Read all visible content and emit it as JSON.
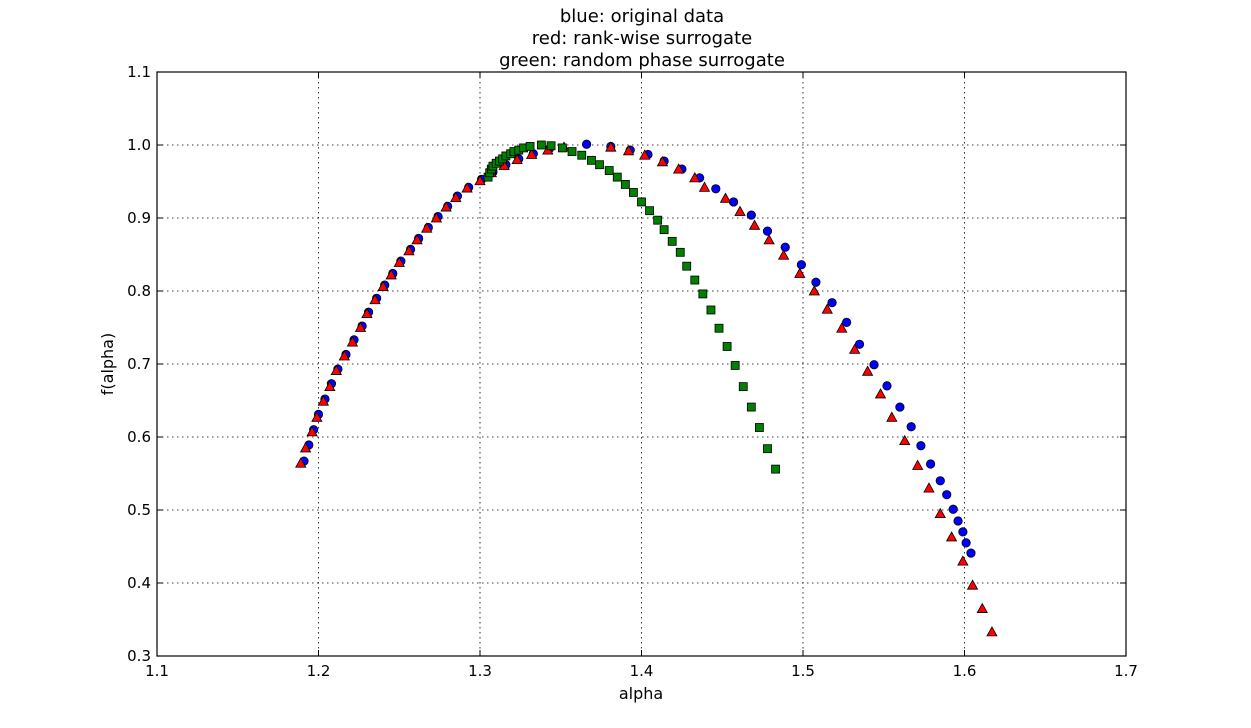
{
  "chart_data": {
    "type": "scatter",
    "title_lines": [
      "blue: original data",
      "red: rank-wise surrogate",
      "green: random phase surrogate"
    ],
    "xlabel": "alpha",
    "ylabel": "f(alpha)",
    "xlim": [
      1.1,
      1.7
    ],
    "ylim": [
      0.3,
      1.1
    ],
    "xticks": [
      "1.1",
      "1.2",
      "1.3",
      "1.4",
      "1.5",
      "1.6",
      "1.7"
    ],
    "yticks": [
      "0.3",
      "0.4",
      "0.5",
      "0.6",
      "0.7",
      "0.8",
      "0.9",
      "1.0",
      "1.1"
    ],
    "grid": true,
    "series": [
      {
        "color": "#0000ff",
        "marker": "circle",
        "points": [
          [
            1.191,
            0.567
          ],
          [
            1.194,
            0.589
          ],
          [
            1.197,
            0.61
          ],
          [
            1.2,
            0.631
          ],
          [
            1.204,
            0.652
          ],
          [
            1.208,
            0.673
          ],
          [
            1.212,
            0.693
          ],
          [
            1.217,
            0.713
          ],
          [
            1.222,
            0.733
          ],
          [
            1.227,
            0.752
          ],
          [
            1.231,
            0.771
          ],
          [
            1.236,
            0.79
          ],
          [
            1.241,
            0.808
          ],
          [
            1.246,
            0.824
          ],
          [
            1.251,
            0.841
          ],
          [
            1.257,
            0.857
          ],
          [
            1.262,
            0.872
          ],
          [
            1.268,
            0.887
          ],
          [
            1.274,
            0.902
          ],
          [
            1.28,
            0.916
          ],
          [
            1.286,
            0.93
          ],
          [
            1.293,
            0.942
          ],
          [
            1.301,
            0.953
          ],
          [
            1.308,
            0.963
          ],
          [
            1.316,
            0.973
          ],
          [
            1.324,
            0.981
          ],
          [
            1.333,
            0.988
          ],
          [
            1.343,
            0.995
          ],
          [
            1.366,
            1.001
          ],
          [
            1.381,
            0.998
          ],
          [
            1.393,
            0.993
          ],
          [
            1.404,
            0.987
          ],
          [
            1.414,
            0.978
          ],
          [
            1.425,
            0.967
          ],
          [
            1.436,
            0.955
          ],
          [
            1.446,
            0.94
          ],
          [
            1.457,
            0.922
          ],
          [
            1.468,
            0.904
          ],
          [
            1.478,
            0.882
          ],
          [
            1.489,
            0.86
          ],
          [
            1.499,
            0.836
          ],
          [
            1.508,
            0.812
          ],
          [
            1.518,
            0.784
          ],
          [
            1.527,
            0.757
          ],
          [
            1.535,
            0.727
          ],
          [
            1.544,
            0.699
          ],
          [
            1.552,
            0.67
          ],
          [
            1.56,
            0.641
          ],
          [
            1.567,
            0.614
          ],
          [
            1.573,
            0.588
          ],
          [
            1.579,
            0.563
          ],
          [
            1.585,
            0.54
          ],
          [
            1.589,
            0.521
          ],
          [
            1.593,
            0.501
          ],
          [
            1.596,
            0.485
          ],
          [
            1.599,
            0.47
          ],
          [
            1.601,
            0.455
          ],
          [
            1.604,
            0.441
          ]
        ]
      },
      {
        "color": "#ff0000",
        "marker": "triangle",
        "points": [
          [
            1.189,
            0.564
          ],
          [
            1.192,
            0.585
          ],
          [
            1.196,
            0.607
          ],
          [
            1.199,
            0.627
          ],
          [
            1.203,
            0.649
          ],
          [
            1.207,
            0.669
          ],
          [
            1.211,
            0.691
          ],
          [
            1.216,
            0.711
          ],
          [
            1.221,
            0.73
          ],
          [
            1.226,
            0.75
          ],
          [
            1.23,
            0.769
          ],
          [
            1.235,
            0.788
          ],
          [
            1.24,
            0.806
          ],
          [
            1.245,
            0.822
          ],
          [
            1.25,
            0.839
          ],
          [
            1.256,
            0.855
          ],
          [
            1.261,
            0.87
          ],
          [
            1.267,
            0.886
          ],
          [
            1.273,
            0.9
          ],
          [
            1.279,
            0.915
          ],
          [
            1.285,
            0.928
          ],
          [
            1.292,
            0.941
          ],
          [
            1.3,
            0.951
          ],
          [
            1.307,
            0.962
          ],
          [
            1.315,
            0.972
          ],
          [
            1.323,
            0.98
          ],
          [
            1.332,
            0.987
          ],
          [
            1.342,
            0.993
          ],
          [
            1.352,
            0.997
          ],
          [
            1.381,
            0.997
          ],
          [
            1.392,
            0.992
          ],
          [
            1.402,
            0.986
          ],
          [
            1.413,
            0.977
          ],
          [
            1.423,
            0.967
          ],
          [
            1.433,
            0.955
          ],
          [
            1.439,
            0.942
          ],
          [
            1.452,
            0.927
          ],
          [
            1.461,
            0.909
          ],
          [
            1.47,
            0.89
          ],
          [
            1.479,
            0.87
          ],
          [
            1.488,
            0.849
          ],
          [
            1.498,
            0.824
          ],
          [
            1.507,
            0.8
          ],
          [
            1.515,
            0.775
          ],
          [
            1.524,
            0.749
          ],
          [
            1.532,
            0.72
          ],
          [
            1.54,
            0.69
          ],
          [
            1.548,
            0.659
          ],
          [
            1.555,
            0.627
          ],
          [
            1.563,
            0.595
          ],
          [
            1.571,
            0.561
          ],
          [
            1.578,
            0.53
          ],
          [
            1.585,
            0.495
          ],
          [
            1.592,
            0.463
          ],
          [
            1.599,
            0.43
          ],
          [
            1.605,
            0.397
          ],
          [
            1.611,
            0.365
          ],
          [
            1.617,
            0.333
          ]
        ]
      },
      {
        "color": "#008000",
        "marker": "square",
        "points": [
          [
            1.305,
            0.956
          ],
          [
            1.306,
            0.962
          ],
          [
            1.307,
            0.967
          ],
          [
            1.308,
            0.971
          ],
          [
            1.31,
            0.975
          ],
          [
            1.312,
            0.978
          ],
          [
            1.314,
            0.981
          ],
          [
            1.316,
            0.985
          ],
          [
            1.319,
            0.988
          ],
          [
            1.321,
            0.991
          ],
          [
            1.324,
            0.993
          ],
          [
            1.327,
            0.996
          ],
          [
            1.331,
            0.998
          ],
          [
            1.338,
            1.0
          ],
          [
            1.344,
            0.999
          ],
          [
            1.351,
            0.996
          ],
          [
            1.357,
            0.991
          ],
          [
            1.363,
            0.986
          ],
          [
            1.369,
            0.979
          ],
          [
            1.374,
            0.973
          ],
          [
            1.38,
            0.965
          ],
          [
            1.385,
            0.956
          ],
          [
            1.39,
            0.946
          ],
          [
            1.395,
            0.935
          ],
          [
            1.4,
            0.922
          ],
          [
            1.405,
            0.91
          ],
          [
            1.41,
            0.897
          ],
          [
            1.414,
            0.884
          ],
          [
            1.419,
            0.868
          ],
          [
            1.424,
            0.853
          ],
          [
            1.428,
            0.834
          ],
          [
            1.433,
            0.815
          ],
          [
            1.438,
            0.796
          ],
          [
            1.443,
            0.774
          ],
          [
            1.448,
            0.749
          ],
          [
            1.453,
            0.724
          ],
          [
            1.458,
            0.698
          ],
          [
            1.463,
            0.669
          ],
          [
            1.468,
            0.641
          ],
          [
            1.473,
            0.613
          ],
          [
            1.478,
            0.584
          ],
          [
            1.483,
            0.556
          ]
        ]
      }
    ]
  }
}
